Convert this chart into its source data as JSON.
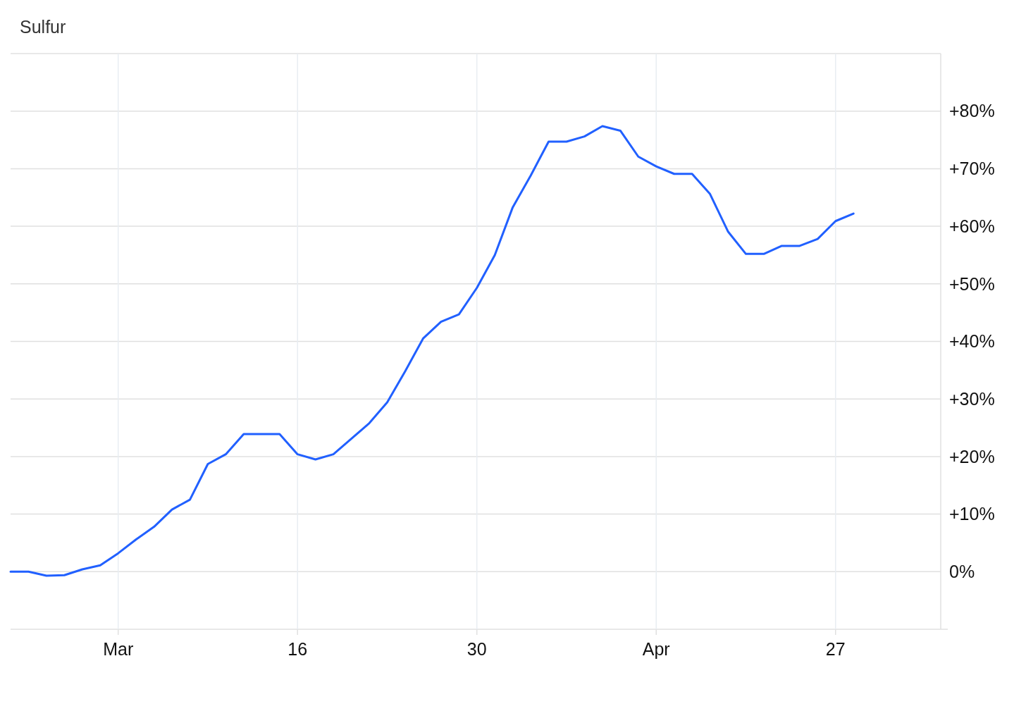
{
  "chart_data": {
    "type": "line",
    "title": "Sulfur",
    "categories": [
      null,
      null,
      null,
      null,
      null,
      null,
      "Mar",
      null,
      null,
      null,
      null,
      null,
      null,
      null,
      null,
      null,
      "16",
      null,
      null,
      null,
      null,
      null,
      null,
      null,
      null,
      null,
      "30",
      null,
      null,
      null,
      null,
      null,
      null,
      null,
      null,
      null,
      "Apr",
      null,
      null,
      null,
      null,
      null,
      null,
      null,
      null,
      null,
      "27",
      null,
      null,
      null,
      null,
      null
    ],
    "series": [
      {
        "color": "#2160ff",
        "values": [
          0,
          0,
          -0.7,
          -0.6,
          0.4,
          1.1,
          3.2,
          5.6,
          7.8,
          10.8,
          12.5,
          18.7,
          20.4,
          23.9,
          23.9,
          23.9,
          20.4,
          19.5,
          20.4,
          23.1,
          25.8,
          29.4,
          34.8,
          40.5,
          43.4,
          44.7,
          49.3,
          55.0,
          63.3,
          68.8,
          74.7,
          74.7,
          75.6,
          77.4,
          76.6,
          72.1,
          70.4,
          69.1,
          69.1,
          65.6,
          59.1,
          55.2,
          55.2,
          56.6,
          56.6,
          57.8,
          60.9,
          62.2,
          null,
          null,
          null,
          null
        ]
      }
    ],
    "ylim": [
      -10,
      90
    ],
    "yticks": [
      {
        "value": 0,
        "label": "0%"
      },
      {
        "value": 10,
        "label": "+10%"
      },
      {
        "value": 20,
        "label": "+20%"
      },
      {
        "value": 30,
        "label": "+30%"
      },
      {
        "value": 40,
        "label": "+40%"
      },
      {
        "value": 50,
        "label": "+50%"
      },
      {
        "value": 60,
        "label": "+60%"
      },
      {
        "value": 70,
        "label": "+70%"
      },
      {
        "value": 80,
        "label": "+80%"
      }
    ],
    "grid": true,
    "marker": "none",
    "line_style": "solid"
  }
}
